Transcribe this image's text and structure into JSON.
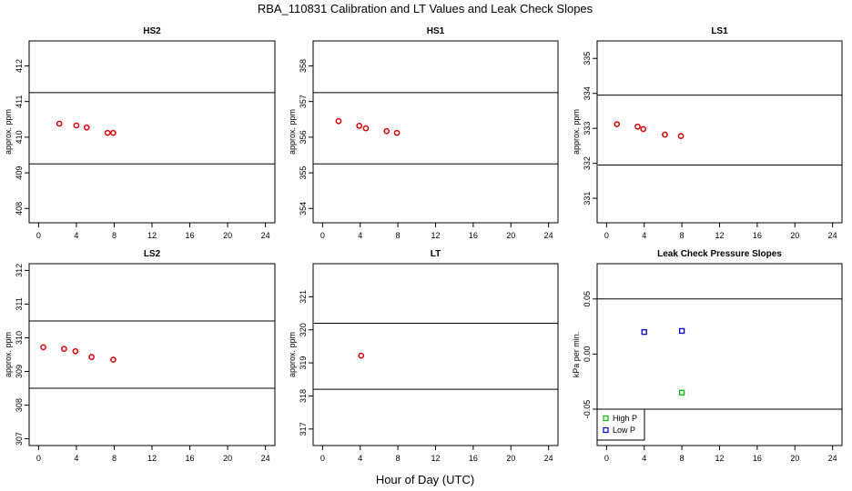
{
  "title": "RBA_110831  Calibration and LT Values and Leak Check Slopes",
  "xlabel": "Hour of Day (UTC)",
  "chart_data": [
    {
      "type": "scatter",
      "title": "HS2",
      "ylabel": "approx. ppm",
      "xlim": [
        -1,
        25
      ],
      "ylim": [
        407.6,
        412.7
      ],
      "xticks": [
        0,
        4,
        8,
        12,
        16,
        20,
        24
      ],
      "yticks": [
        408,
        409,
        410,
        411,
        412
      ],
      "hlines": [
        411.25,
        409.25
      ],
      "series": [
        {
          "color": "#dd0000",
          "marker": "circle",
          "points": [
            [
              2.2,
              410.38
            ],
            [
              4.0,
              410.33
            ],
            [
              5.1,
              410.27
            ],
            [
              7.3,
              410.12
            ],
            [
              7.9,
              410.12
            ]
          ]
        }
      ]
    },
    {
      "type": "scatter",
      "title": "HS1",
      "ylabel": "approx. ppm",
      "xlim": [
        -1,
        25
      ],
      "ylim": [
        353.6,
        358.7
      ],
      "xticks": [
        0,
        4,
        8,
        12,
        16,
        20,
        24
      ],
      "yticks": [
        354,
        355,
        356,
        357,
        358
      ],
      "hlines": [
        357.25,
        355.25
      ],
      "series": [
        {
          "color": "#dd0000",
          "marker": "circle",
          "points": [
            [
              1.7,
              356.45
            ],
            [
              3.9,
              356.32
            ],
            [
              4.6,
              356.25
            ],
            [
              6.8,
              356.17
            ],
            [
              7.9,
              356.12
            ]
          ]
        }
      ]
    },
    {
      "type": "scatter",
      "title": "LS1",
      "ylabel": "approx. ppm",
      "xlim": [
        -1,
        25
      ],
      "ylim": [
        330.3,
        335.5
      ],
      "xticks": [
        0,
        4,
        8,
        12,
        16,
        20,
        24
      ],
      "yticks": [
        331,
        332,
        333,
        334,
        335
      ],
      "hlines": [
        333.95,
        331.95
      ],
      "series": [
        {
          "color": "#dd0000",
          "marker": "circle",
          "points": [
            [
              1.1,
              333.12
            ],
            [
              3.3,
              333.05
            ],
            [
              3.9,
              332.98
            ],
            [
              6.2,
              332.82
            ],
            [
              7.9,
              332.78
            ]
          ]
        }
      ]
    },
    {
      "type": "scatter",
      "title": "LS2",
      "ylabel": "approx. ppm",
      "xlim": [
        -1,
        25
      ],
      "ylim": [
        306.8,
        312.2
      ],
      "xticks": [
        0,
        4,
        8,
        12,
        16,
        20,
        24
      ],
      "yticks": [
        307,
        308,
        309,
        310,
        311,
        312
      ],
      "hlines": [
        310.5,
        308.5
      ],
      "series": [
        {
          "color": "#dd0000",
          "marker": "circle",
          "points": [
            [
              0.5,
              309.72
            ],
            [
              2.7,
              309.67
            ],
            [
              3.9,
              309.6
            ],
            [
              5.6,
              309.43
            ],
            [
              7.9,
              309.35
            ]
          ]
        }
      ]
    },
    {
      "type": "scatter",
      "title": "LT",
      "ylabel": "approx. ppm",
      "xlim": [
        -1,
        25
      ],
      "ylim": [
        316.5,
        322.0
      ],
      "xticks": [
        0,
        4,
        8,
        12,
        16,
        20,
        24
      ],
      "yticks": [
        317,
        318,
        319,
        320,
        321
      ],
      "hlines": [
        320.2,
        318.2
      ],
      "series": [
        {
          "color": "#dd0000",
          "marker": "circle",
          "points": [
            [
              4.1,
              319.22
            ]
          ]
        }
      ]
    },
    {
      "type": "scatter",
      "title": "Leak Check Pressure Slopes",
      "ylabel": "kPa per min.",
      "xlim": [
        -1,
        25
      ],
      "ylim": [
        -0.083,
        0.082
      ],
      "xticks": [
        0,
        4,
        8,
        12,
        16,
        20,
        24
      ],
      "yticks": [
        -0.05,
        0.0,
        0.05
      ],
      "ytick_labels": [
        "-0.05",
        "0.00",
        "0.05"
      ],
      "hlines": [
        0.05,
        -0.05
      ],
      "series": [
        {
          "name": "High P",
          "color": "#00bb00",
          "marker": "square",
          "points": [
            [
              8.0,
              -0.035
            ]
          ]
        },
        {
          "name": "Low P",
          "color": "#0000cc",
          "marker": "square",
          "points": [
            [
              4.0,
              0.02
            ],
            [
              8.0,
              0.021
            ]
          ]
        }
      ],
      "legend": "bottom-left"
    }
  ]
}
